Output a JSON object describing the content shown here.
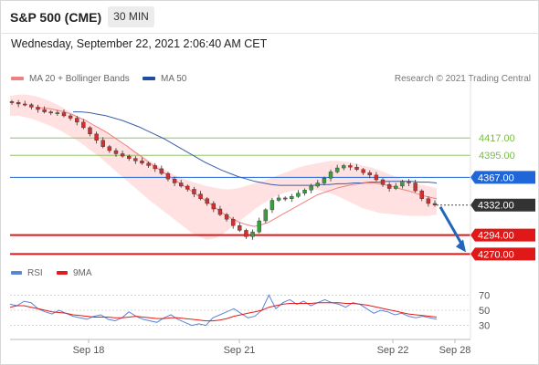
{
  "header": {
    "title": "S&P 500 (CME)",
    "timeframe": "30 MIN",
    "datetime": "Wednesday, September 22, 2021 2:06:40 AM CET"
  },
  "legend": {
    "items": [
      {
        "label": "MA 20 + Bollinger Bands",
        "color": "#f08080"
      },
      {
        "label": "MA 50",
        "color": "#1f4e9e"
      }
    ],
    "copyright": "Research © 2021 Trading Central"
  },
  "rsi_legend": {
    "items": [
      {
        "label": "RSI",
        "color": "#5a84d6"
      },
      {
        "label": "9MA",
        "color": "#e31b1b"
      }
    ]
  },
  "colors": {
    "resistance": "#7dbb4a",
    "pivot": "#1f66d8",
    "support": "#e01818",
    "current": "#333333",
    "bollinger": "#ffdcdc",
    "ma20": "#f08080",
    "ma50": "#3a5fa8",
    "candle_up": "#3a9e3a",
    "candle_down": "#d03030",
    "arrow": "#2266bb"
  },
  "chart_data": {
    "type": "candlestick",
    "price_axis_range": [
      4245,
      4490
    ],
    "x_tick_labels": [
      "Sep 18",
      "Sep 21",
      "Sep 22",
      "Sep 28"
    ],
    "levels": [
      {
        "label": "4417.00",
        "value": 4417,
        "kind": "resistance"
      },
      {
        "label": "4395.00",
        "value": 4395,
        "kind": "resistance"
      },
      {
        "label": "4367.00",
        "value": 4367,
        "kind": "pivot"
      },
      {
        "label": "4332.00",
        "value": 4332,
        "kind": "current"
      },
      {
        "label": "4294.00",
        "value": 4294,
        "kind": "support"
      },
      {
        "label": "4270.00",
        "value": 4270,
        "kind": "support"
      }
    ],
    "close_series": [
      4462,
      4460,
      4459,
      4456,
      4453,
      4450,
      4449,
      4449,
      4445,
      4442,
      4437,
      4430,
      4422,
      4414,
      4406,
      4401,
      4397,
      4394,
      4391,
      4388,
      4385,
      4382,
      4378,
      4372,
      4365,
      4360,
      4356,
      4352,
      4346,
      4340,
      4334,
      4327,
      4320,
      4314,
      4306,
      4300,
      4292,
      4298,
      4312,
      4326,
      4338,
      4341,
      4340,
      4343,
      4347,
      4351,
      4356,
      4360,
      4366,
      4374,
      4379,
      4382,
      4380,
      4377,
      4373,
      4370,
      4364,
      4358,
      4353,
      4356,
      4362,
      4360,
      4350,
      4340,
      4334,
      4332
    ],
    "ma20_series": [
      4455,
      4455,
      4454,
      4452,
      4450,
      4447,
      4443,
      4439,
      4434,
      4429,
      4424,
      4418,
      4412,
      4406,
      4399,
      4393,
      4386,
      4380,
      4374,
      4368,
      4362,
      4356,
      4350,
      4344,
      4338,
      4332,
      4325,
      4319,
      4314,
      4310,
      4307,
      4305,
      4307,
      4310,
      4315,
      4320,
      4325,
      4330,
      4335,
      4340,
      4345,
      4348,
      4351,
      4354,
      4356,
      4358,
      4359,
      4360,
      4360,
      4359,
      4357,
      4355,
      4352,
      4350,
      4347,
      4344,
      4342,
      4340
    ],
    "bollinger_upper": [
      4470,
      4472,
      4472,
      4470,
      4467,
      4463,
      4458,
      4452,
      4446,
      4440,
      4434,
      4428,
      4422,
      4416,
      4409,
      4402,
      4395,
      4388,
      4382,
      4376,
      4370,
      4366,
      4362,
      4359,
      4356,
      4354,
      4352,
      4352,
      4354,
      4357,
      4360,
      4363,
      4367,
      4371,
      4375,
      4379,
      4382,
      4384,
      4386,
      4388,
      4388,
      4387,
      4385,
      4382,
      4380,
      4376,
      4372,
      4368,
      4364,
      4361,
      4358,
      4356,
      4353
    ],
    "bollinger_lower": [
      4445,
      4445,
      4443,
      4440,
      4436,
      4432,
      4427,
      4421,
      4415,
      4408,
      4400,
      4392,
      4383,
      4374,
      4365,
      4356,
      4347,
      4338,
      4330,
      4322,
      4314,
      4306,
      4298,
      4292,
      4288,
      4290,
      4296,
      4304,
      4312,
      4320,
      4328,
      4335,
      4341,
      4346,
      4349,
      4351,
      4352,
      4352,
      4350,
      4347,
      4343,
      4338,
      4333,
      4328,
      4325,
      4322,
      4321,
      4320,
      4319,
      4318,
      4318,
      4318,
      4320
    ],
    "ma50_series": [
      4450,
      4450,
      4449,
      4447,
      4445,
      4442,
      4439,
      4435,
      4431,
      4426,
      4421,
      4416,
      4410,
      4404,
      4398,
      4392,
      4386,
      4381,
      4376,
      4372,
      4368,
      4365,
      4362,
      4360,
      4358,
      4357,
      4357,
      4357,
      4357,
      4357,
      4358,
      4358,
      4359,
      4359,
      4360,
      4360,
      4361,
      4361,
      4362,
      4362,
      4362,
      4362,
      4361,
      4361,
      4360
    ],
    "projection": {
      "from": 4332,
      "to": 4270
    },
    "rsi": {
      "levels": [
        70,
        50,
        30
      ],
      "range": [
        15,
        85
      ],
      "rsi_series": [
        58,
        56,
        62,
        60,
        52,
        48,
        45,
        50,
        46,
        42,
        40,
        38,
        42,
        44,
        38,
        36,
        40,
        48,
        42,
        38,
        36,
        34,
        40,
        44,
        38,
        34,
        30,
        32,
        30,
        40,
        44,
        48,
        52,
        46,
        40,
        42,
        50,
        70,
        52,
        60,
        64,
        58,
        62,
        56,
        60,
        64,
        60,
        58,
        54,
        60,
        58,
        52,
        46,
        50,
        48,
        44,
        46,
        42,
        40,
        42,
        40,
        38
      ],
      "ma_series": [
        54,
        56,
        56,
        54,
        52,
        50,
        48,
        47,
        46,
        44,
        43,
        42,
        41,
        41,
        41,
        40,
        40,
        41,
        42,
        41,
        40,
        39,
        39,
        40,
        40,
        39,
        38,
        37,
        36,
        36,
        37,
        39,
        42,
        44,
        46,
        48,
        50,
        54,
        56,
        58,
        59,
        59,
        59,
        59,
        60,
        60,
        60,
        60,
        59,
        59,
        58,
        57,
        55,
        53,
        51,
        49,
        47,
        45,
        44,
        43,
        42,
        41
      ]
    }
  }
}
